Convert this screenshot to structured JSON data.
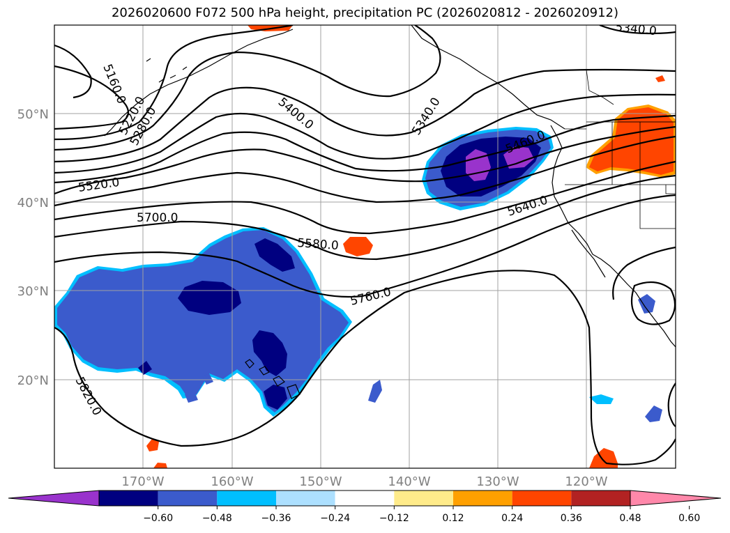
{
  "title": "2026020600 F072 500 hPa height, precipitation PC (2026020812 - 2026020912)",
  "map": {
    "projection": "PlateCarree",
    "lon_range": [
      -180,
      -110
    ],
    "lat_range": [
      10,
      60
    ],
    "lat_ticks": [
      {
        "value": 50,
        "label": "50°N"
      },
      {
        "value": 40,
        "label": "40°N"
      },
      {
        "value": 30,
        "label": "30°N"
      },
      {
        "value": 20,
        "label": "20°N"
      }
    ],
    "lon_ticks": [
      {
        "value": -170,
        "label": "170°W"
      },
      {
        "value": -160,
        "label": "160°W"
      },
      {
        "value": -150,
        "label": "150°W"
      },
      {
        "value": -140,
        "label": "140°W"
      },
      {
        "value": -130,
        "label": "130°W"
      },
      {
        "value": -120,
        "label": "120°W"
      }
    ],
    "grid": true,
    "contour_labels": [
      "5160.0",
      "5220.0",
      "5280.0",
      "5340.0",
      "5340.0",
      "5400.0",
      "5460.0",
      "5520.0",
      "5580.0",
      "5640.0",
      "5700.0",
      "5760.0",
      "5820.0"
    ]
  },
  "colorbar": {
    "ticks": [
      "−0.60",
      "−0.48",
      "−0.36",
      "−0.24",
      "−0.12",
      "0.12",
      "0.24",
      "0.36",
      "0.48",
      "0.60"
    ],
    "colors": [
      "#9933CC",
      "#000080",
      "#3B5BCC",
      "#00BFFF",
      "#ADE0FF",
      "#FFFFFF",
      "#FFEB8A",
      "#FFA000",
      "#FF4500",
      "#B22222",
      "#FF88AA"
    ],
    "extend": "both"
  }
}
